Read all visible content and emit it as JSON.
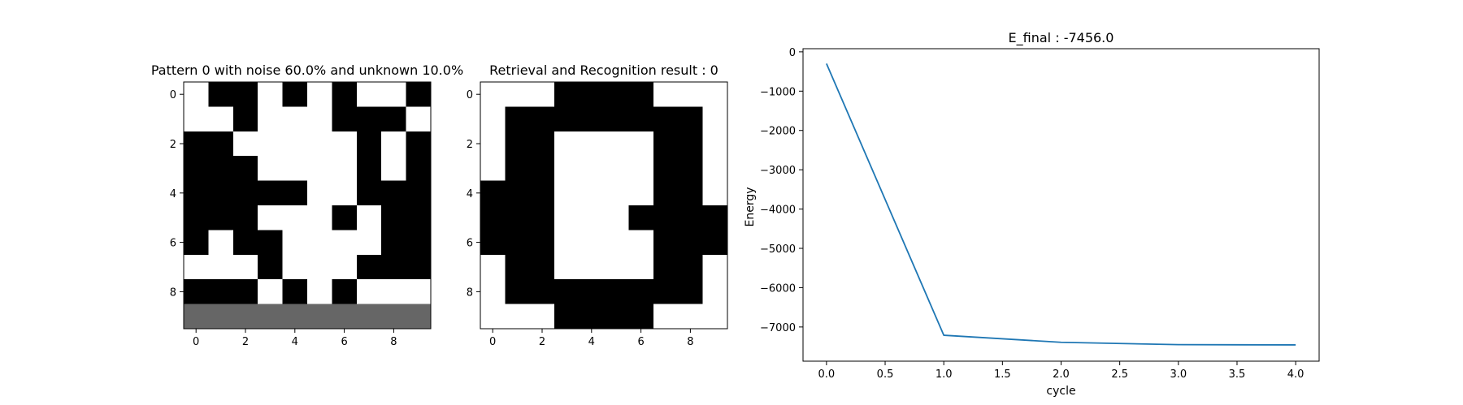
{
  "chart_data": [
    {
      "type": "heatmap",
      "title": "Pattern 0 with noise 60.0% and unknown 10.0%",
      "rows": 10,
      "cols": 10,
      "legend": {
        "1": "black",
        "0": "white",
        "-1": "gray"
      },
      "colors": {
        "on": "#000000",
        "off": "#ffffff",
        "unknown": "#666666"
      },
      "xticks": [
        "0",
        "2",
        "4",
        "6",
        "8"
      ],
      "yticks": [
        "0",
        "2",
        "4",
        "6",
        "8"
      ],
      "grid": [
        [
          0,
          1,
          1,
          0,
          1,
          0,
          1,
          0,
          0,
          1
        ],
        [
          0,
          0,
          1,
          0,
          0,
          0,
          1,
          1,
          1,
          0
        ],
        [
          1,
          1,
          0,
          0,
          0,
          0,
          0,
          1,
          0,
          1
        ],
        [
          1,
          1,
          1,
          0,
          0,
          0,
          0,
          1,
          0,
          1
        ],
        [
          1,
          1,
          1,
          1,
          1,
          0,
          0,
          1,
          1,
          1
        ],
        [
          1,
          1,
          1,
          0,
          0,
          0,
          1,
          0,
          1,
          1
        ],
        [
          1,
          0,
          1,
          1,
          0,
          0,
          0,
          0,
          1,
          1
        ],
        [
          0,
          0,
          0,
          1,
          0,
          0,
          0,
          1,
          1,
          1
        ],
        [
          1,
          1,
          1,
          0,
          1,
          0,
          1,
          0,
          0,
          0
        ],
        [
          -1,
          -1,
          -1,
          -1,
          -1,
          -1,
          -1,
          -1,
          -1,
          -1
        ]
      ]
    },
    {
      "type": "heatmap",
      "title": "Retrieval and Recognition result : 0",
      "rows": 10,
      "cols": 10,
      "legend": {
        "1": "black",
        "0": "white"
      },
      "colors": {
        "on": "#000000",
        "off": "#ffffff"
      },
      "xticks": [
        "0",
        "2",
        "4",
        "6",
        "8"
      ],
      "yticks": [
        "0",
        "2",
        "4",
        "6",
        "8"
      ],
      "grid": [
        [
          0,
          0,
          0,
          1,
          1,
          1,
          1,
          0,
          0,
          0
        ],
        [
          0,
          1,
          1,
          1,
          1,
          1,
          1,
          1,
          1,
          0
        ],
        [
          0,
          1,
          1,
          0,
          0,
          0,
          0,
          1,
          1,
          0
        ],
        [
          0,
          1,
          1,
          0,
          0,
          0,
          0,
          1,
          1,
          0
        ],
        [
          1,
          1,
          1,
          0,
          0,
          0,
          0,
          1,
          1,
          0
        ],
        [
          1,
          1,
          1,
          0,
          0,
          0,
          1,
          1,
          1,
          1
        ],
        [
          1,
          1,
          1,
          0,
          0,
          0,
          0,
          1,
          1,
          1
        ],
        [
          0,
          1,
          1,
          0,
          0,
          0,
          0,
          1,
          1,
          0
        ],
        [
          0,
          1,
          1,
          1,
          1,
          1,
          1,
          1,
          1,
          0
        ],
        [
          0,
          0,
          0,
          1,
          1,
          1,
          1,
          0,
          0,
          0
        ]
      ]
    },
    {
      "type": "line",
      "title": "E_final : -7456.0",
      "xlabel": "cycle",
      "ylabel": "Energy",
      "x": [
        0.0,
        1.0,
        2.0,
        3.0,
        4.0
      ],
      "series": [
        {
          "values": [
            -300,
            -7210,
            -7390,
            -7450,
            -7456
          ],
          "color": "#1f77b4"
        }
      ],
      "xlim": [
        -0.2,
        4.2
      ],
      "ylim": [
        -7870,
        80
      ],
      "xticks": [
        0.0,
        0.5,
        1.0,
        1.5,
        2.0,
        2.5,
        3.0,
        3.5,
        4.0
      ],
      "xtick_labels": [
        "0.0",
        "0.5",
        "1.0",
        "1.5",
        "2.0",
        "2.5",
        "3.0",
        "3.5",
        "4.0"
      ],
      "yticks": [
        0,
        -1000,
        -2000,
        -3000,
        -4000,
        -5000,
        -6000,
        -7000
      ],
      "ytick_labels": [
        "0",
        "−1000",
        "−2000",
        "−3000",
        "−4000",
        "−5000",
        "−6000",
        "−7000"
      ],
      "grid": false
    }
  ]
}
